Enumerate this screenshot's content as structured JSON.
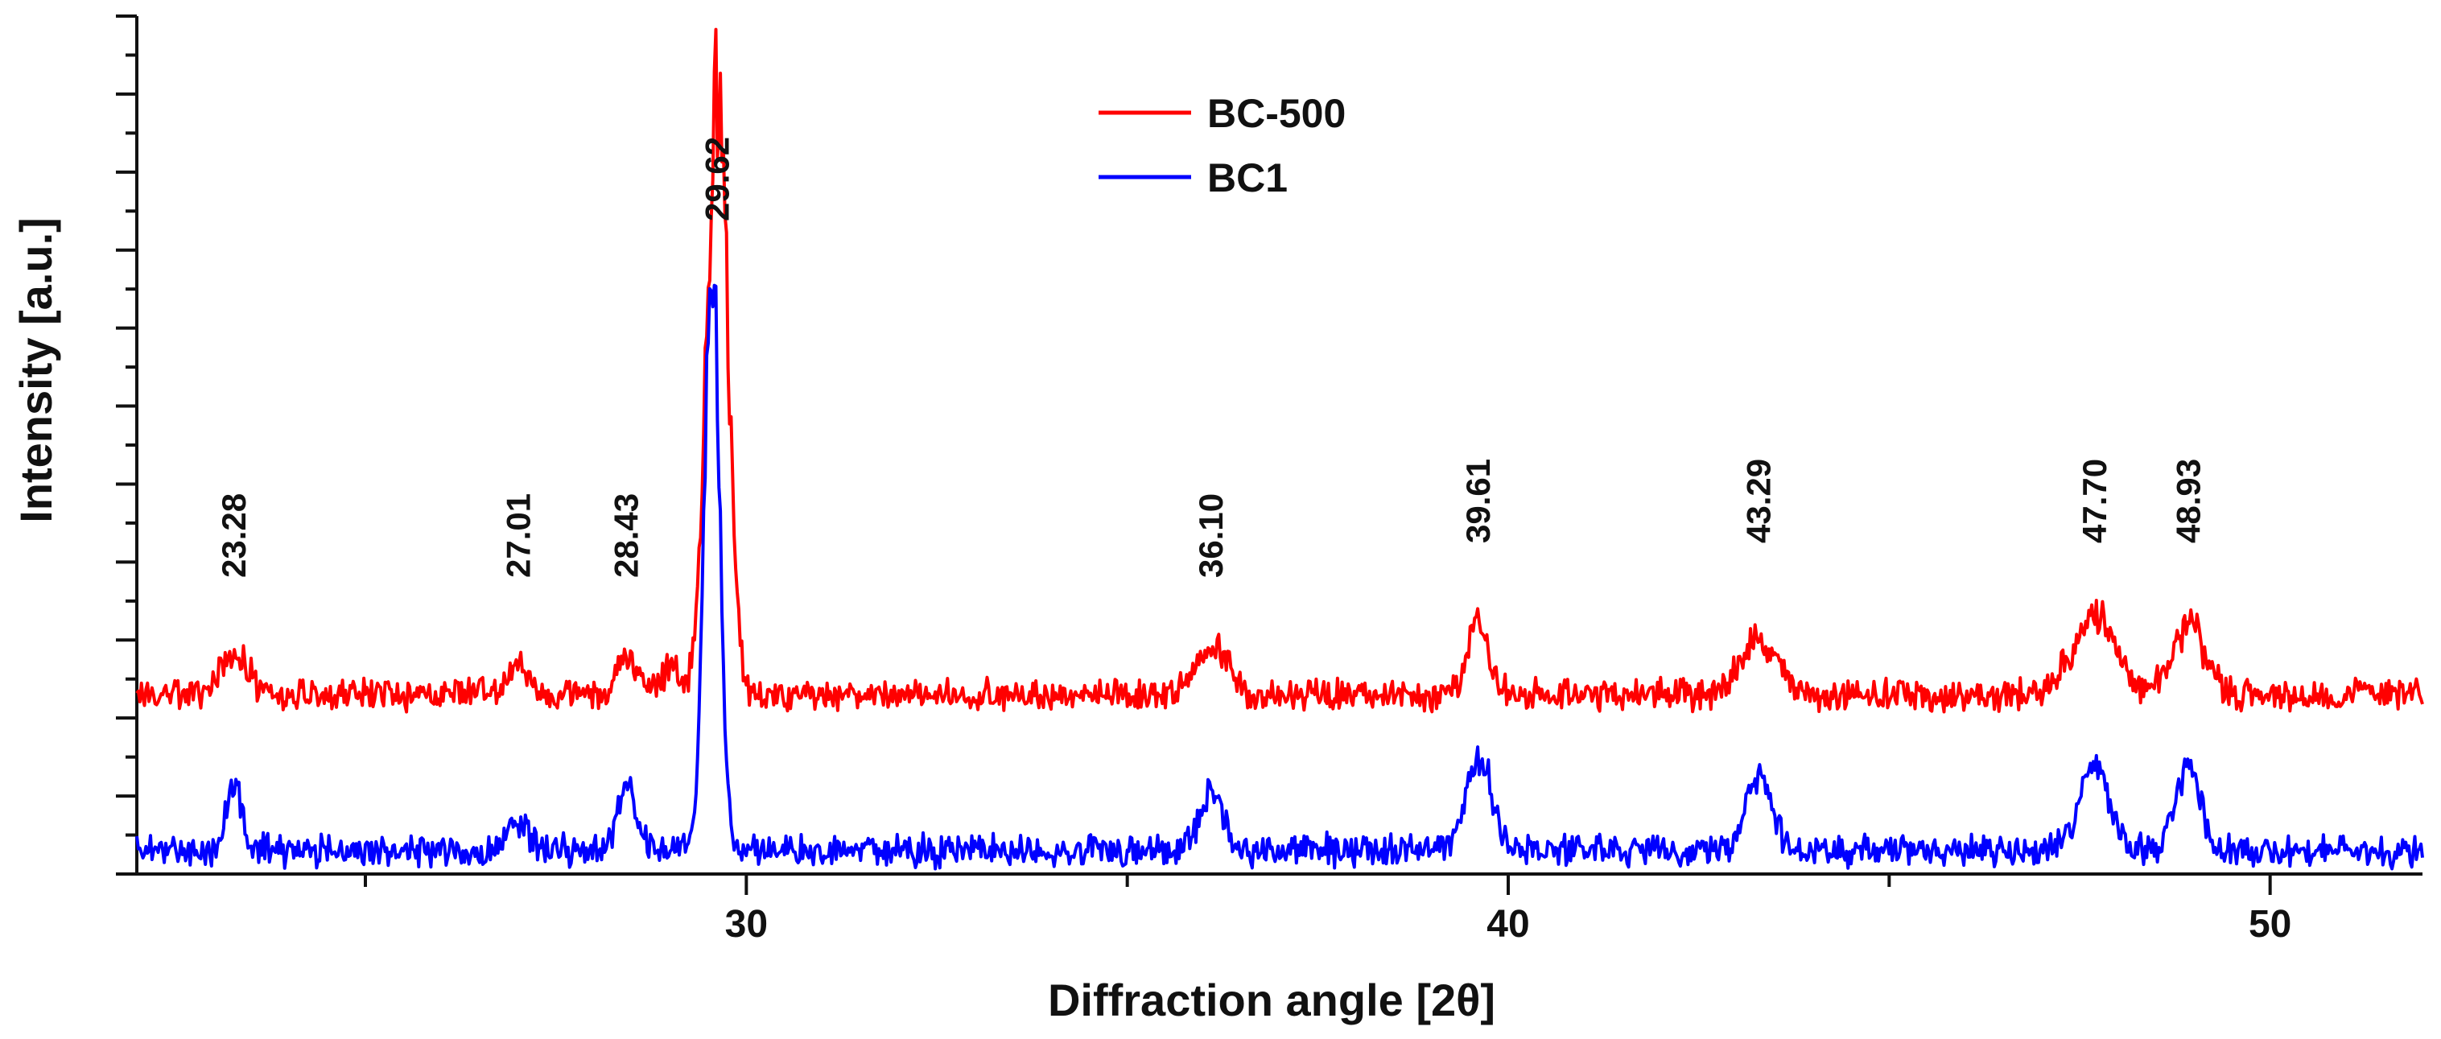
{
  "chart_data": {
    "type": "line",
    "title": "",
    "xlabel": "Diffraction angle [2θ]",
    "ylabel": "Intensity [a.u.]",
    "xlim": [
      22,
      52
    ],
    "ylim": [
      0,
      110
    ],
    "x_ticks": [
      30,
      40,
      50
    ],
    "x_tick_labels": [
      "30",
      "40",
      "50"
    ],
    "y_ticks_labeled": false,
    "grid": false,
    "legend": {
      "position": "top-center",
      "entries": [
        "BC-500",
        "BC1"
      ]
    },
    "colors": {
      "BC-500": "#ff0000",
      "BC1": "#0000ff"
    },
    "series": [
      {
        "name": "BC-500",
        "baseline": 23,
        "peaks": [
          {
            "x": 23.28,
            "h": 5,
            "w": 0.18
          },
          {
            "x": 27.01,
            "h": 3.5,
            "w": 0.15
          },
          {
            "x": 28.43,
            "h": 6,
            "w": 0.12
          },
          {
            "x": 29.0,
            "h": 3,
            "w": 0.15
          },
          {
            "x": 29.62,
            "h": 77,
            "w": 0.14
          },
          {
            "x": 36.1,
            "h": 6,
            "w": 0.22
          },
          {
            "x": 39.61,
            "h": 10,
            "w": 0.13
          },
          {
            "x": 43.29,
            "h": 7,
            "w": 0.25
          },
          {
            "x": 47.7,
            "h": 10,
            "w": 0.28
          },
          {
            "x": 48.93,
            "h": 9,
            "w": 0.22
          }
        ]
      },
      {
        "name": "BC1",
        "baseline": 3,
        "peaks": [
          {
            "x": 23.28,
            "h": 9,
            "w": 0.1
          },
          {
            "x": 27.01,
            "h": 4,
            "w": 0.15
          },
          {
            "x": 28.43,
            "h": 8,
            "w": 0.12
          },
          {
            "x": 29.55,
            "h": 74,
            "w": 0.1
          },
          {
            "x": 36.1,
            "h": 8,
            "w": 0.15
          },
          {
            "x": 39.61,
            "h": 12,
            "w": 0.17
          },
          {
            "x": 43.29,
            "h": 10,
            "w": 0.17
          },
          {
            "x": 47.7,
            "h": 11,
            "w": 0.2
          },
          {
            "x": 48.93,
            "h": 11,
            "w": 0.16
          }
        ]
      }
    ],
    "annotations": [
      {
        "x": 23.28,
        "label": "23.28"
      },
      {
        "x": 27.01,
        "label": "27.01"
      },
      {
        "x": 28.43,
        "label": "28.43"
      },
      {
        "x": 29.62,
        "label": "29.62"
      },
      {
        "x": 36.1,
        "label": "36.10"
      },
      {
        "x": 39.61,
        "label": "39.61"
      },
      {
        "x": 43.29,
        "label": "43.29"
      },
      {
        "x": 47.7,
        "label": "47.70"
      },
      {
        "x": 48.93,
        "label": "48.93"
      }
    ]
  }
}
